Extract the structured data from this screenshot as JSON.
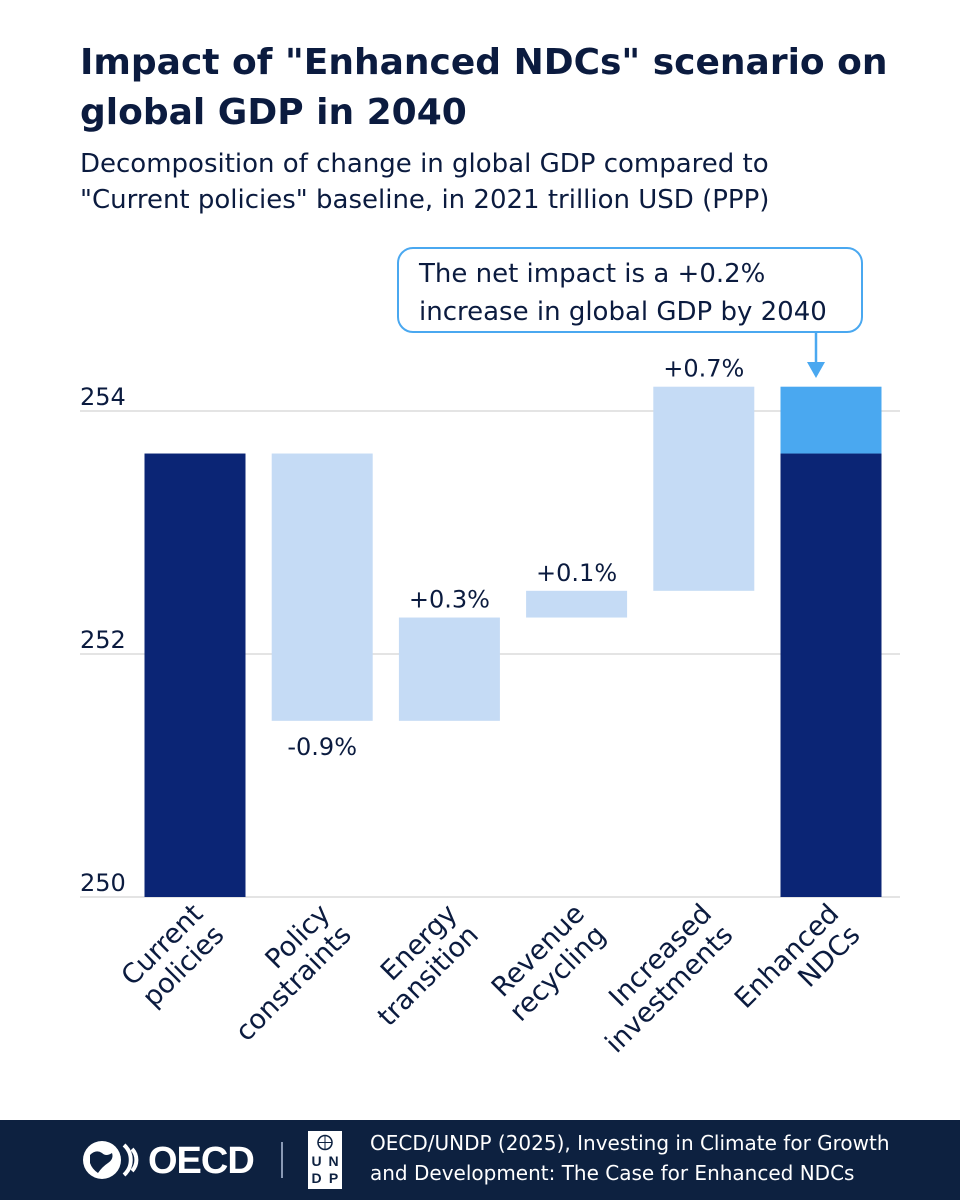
{
  "title": "Impact of \"Enhanced NDCs\" scenario on global GDP in 2040",
  "subtitle_lines": [
    "Decomposition of change in global GDP compared to",
    "\"Current policies\" baseline, in 2021 trillion USD (PPP)"
  ],
  "callout_lines": [
    "The net impact is a +0.2%",
    "increase in global GDP by 2040"
  ],
  "colors": {
    "dark": "#0b2575",
    "light": "#c5dbf5",
    "accent": "#4aa8f0",
    "grid": "#c8c8c8",
    "text": "#0b1b3f",
    "footer": "#0d2140"
  },
  "chart_data": {
    "type": "bar",
    "subtype": "waterfall",
    "ylim": [
      250,
      254.2
    ],
    "yticks": [
      "250",
      "252",
      "254"
    ],
    "grid": true,
    "categories": [
      [
        "Current",
        "policies"
      ],
      [
        "Policy",
        "constraints"
      ],
      [
        "Energy",
        "transition"
      ],
      [
        "Revenue",
        "recycling"
      ],
      [
        "Increased",
        "investments"
      ],
      [
        "Enhanced",
        "NDCs"
      ]
    ],
    "bars": [
      {
        "base": 250,
        "top": 253.65,
        "kind": "total",
        "label": ""
      },
      {
        "base": 251.45,
        "top": 253.65,
        "kind": "delta",
        "label": "-0.9%",
        "label_pos": "below"
      },
      {
        "base": 251.45,
        "top": 252.3,
        "kind": "delta",
        "label": "+0.3%",
        "label_pos": "above"
      },
      {
        "base": 252.3,
        "top": 252.52,
        "kind": "delta",
        "label": "+0.1%",
        "label_pos": "above"
      },
      {
        "base": 252.52,
        "top": 254.2,
        "kind": "delta",
        "label": "+0.7%",
        "label_pos": "above"
      },
      {
        "base": 250,
        "top": 253.65,
        "kind": "total",
        "increment_top": 254.2,
        "label": ""
      }
    ]
  },
  "footer": {
    "oecd_label": "OECD",
    "undp_letters": [
      "U",
      "N",
      "D",
      "P"
    ],
    "source_lines": [
      "OECD/UNDP (2025), Investing in Climate for Growth",
      "and Development: The Case for Enhanced NDCs"
    ]
  }
}
